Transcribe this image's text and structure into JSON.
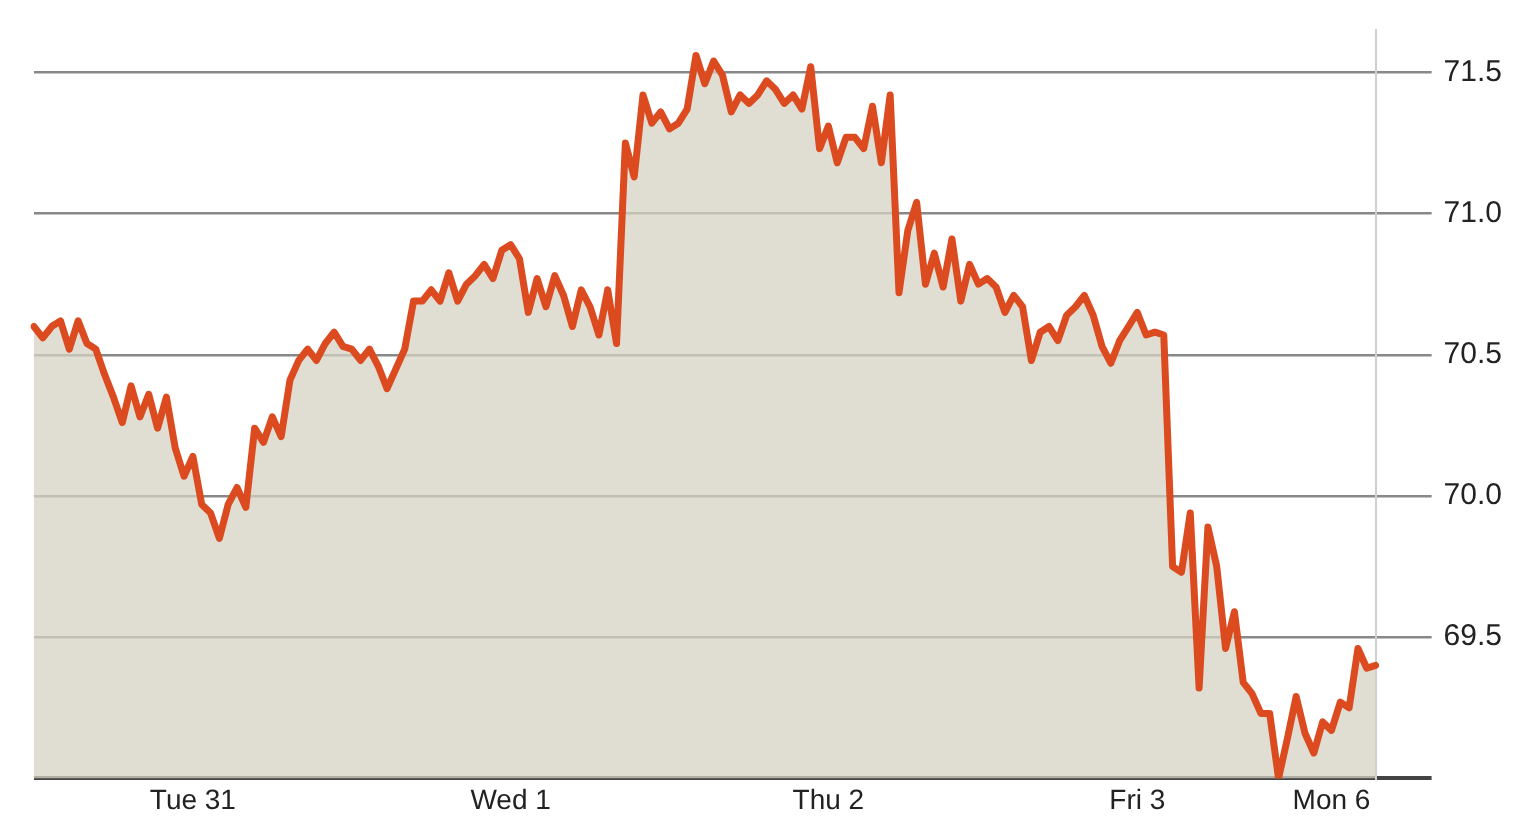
{
  "chart_data": {
    "type": "area",
    "categories": [
      null,
      null,
      null,
      null,
      null,
      null,
      null,
      null,
      null,
      null,
      null,
      null,
      null,
      null,
      null,
      null,
      null,
      null,
      "Tue 31",
      null,
      null,
      null,
      null,
      null,
      null,
      null,
      null,
      null,
      null,
      null,
      null,
      null,
      null,
      null,
      null,
      null,
      null,
      null,
      null,
      null,
      null,
      null,
      null,
      null,
      null,
      null,
      null,
      null,
      null,
      null,
      null,
      null,
      null,
      null,
      "Wed 1",
      null,
      null,
      null,
      null,
      null,
      null,
      null,
      null,
      null,
      null,
      null,
      null,
      null,
      null,
      null,
      null,
      null,
      null,
      null,
      null,
      null,
      null,
      null,
      null,
      null,
      null,
      null,
      null,
      null,
      null,
      null,
      null,
      null,
      null,
      null,
      "Thu 2",
      null,
      null,
      null,
      null,
      null,
      null,
      null,
      null,
      null,
      null,
      null,
      null,
      null,
      null,
      null,
      null,
      null,
      null,
      null,
      null,
      null,
      null,
      null,
      null,
      null,
      null,
      null,
      null,
      null,
      null,
      null,
      null,
      null,
      null,
      "Fri 3",
      null,
      null,
      null,
      null,
      null,
      null,
      null,
      null,
      null,
      null,
      null,
      null,
      null,
      null,
      null,
      null,
      null,
      null,
      null,
      null,
      null,
      "Mon 6",
      null,
      null,
      null,
      null,
      null
    ],
    "series": [
      {
        "color": "#dc4a20",
        "values": [
          70.6,
          70.56,
          70.6,
          70.62,
          70.52,
          70.62,
          70.54,
          70.52,
          70.43,
          70.35,
          70.26,
          70.39,
          70.28,
          70.36,
          70.24,
          70.35,
          70.17,
          70.07,
          70.14,
          69.97,
          69.94,
          69.85,
          69.97,
          70.03,
          69.96,
          70.24,
          70.19,
          70.28,
          70.21,
          70.41,
          70.48,
          70.52,
          70.48,
          70.54,
          70.58,
          70.53,
          70.52,
          70.48,
          70.52,
          70.46,
          70.38,
          70.45,
          70.52,
          70.69,
          70.69,
          70.73,
          70.69,
          70.79,
          70.69,
          70.75,
          70.78,
          70.82,
          70.77,
          70.87,
          70.89,
          70.84,
          70.65,
          70.77,
          70.67,
          70.78,
          70.71,
          70.6,
          70.73,
          70.67,
          70.57,
          70.73,
          70.54,
          71.25,
          71.13,
          71.42,
          71.32,
          71.36,
          71.3,
          71.32,
          71.37,
          71.56,
          71.46,
          71.54,
          71.49,
          71.36,
          71.42,
          71.39,
          71.42,
          71.47,
          71.44,
          71.39,
          71.42,
          71.37,
          71.52,
          71.23,
          71.31,
          71.18,
          71.27,
          71.27,
          71.23,
          71.38,
          71.18,
          71.42,
          70.72,
          70.94,
          71.04,
          70.75,
          70.86,
          70.74,
          70.91,
          70.69,
          70.82,
          70.75,
          70.77,
          70.74,
          70.65,
          70.71,
          70.67,
          70.48,
          70.58,
          70.6,
          70.55,
          70.64,
          70.67,
          70.71,
          70.64,
          70.53,
          70.47,
          70.55,
          70.6,
          70.65,
          70.57,
          70.58,
          70.57,
          69.75,
          69.73,
          69.94,
          69.32,
          69.89,
          69.75,
          69.46,
          69.59,
          69.34,
          69.3,
          69.23,
          69.23,
          69.0,
          69.14,
          69.29,
          69.16,
          69.09,
          69.2,
          69.17,
          69.27,
          69.25,
          69.46,
          69.39,
          69.4
        ]
      }
    ],
    "ylim": [
      69,
      71.65
    ],
    "yticks": [
      {
        "value": 69,
        "label": null
      },
      {
        "value": 69.5,
        "label": "69.5"
      },
      {
        "value": 70,
        "label": "70.0"
      },
      {
        "value": 70.5,
        "label": "70.5"
      },
      {
        "value": 71,
        "label": "71.0"
      },
      {
        "value": 71.5,
        "label": "71.5"
      }
    ],
    "grid": "y",
    "marker": "none",
    "line_style": "solid"
  }
}
